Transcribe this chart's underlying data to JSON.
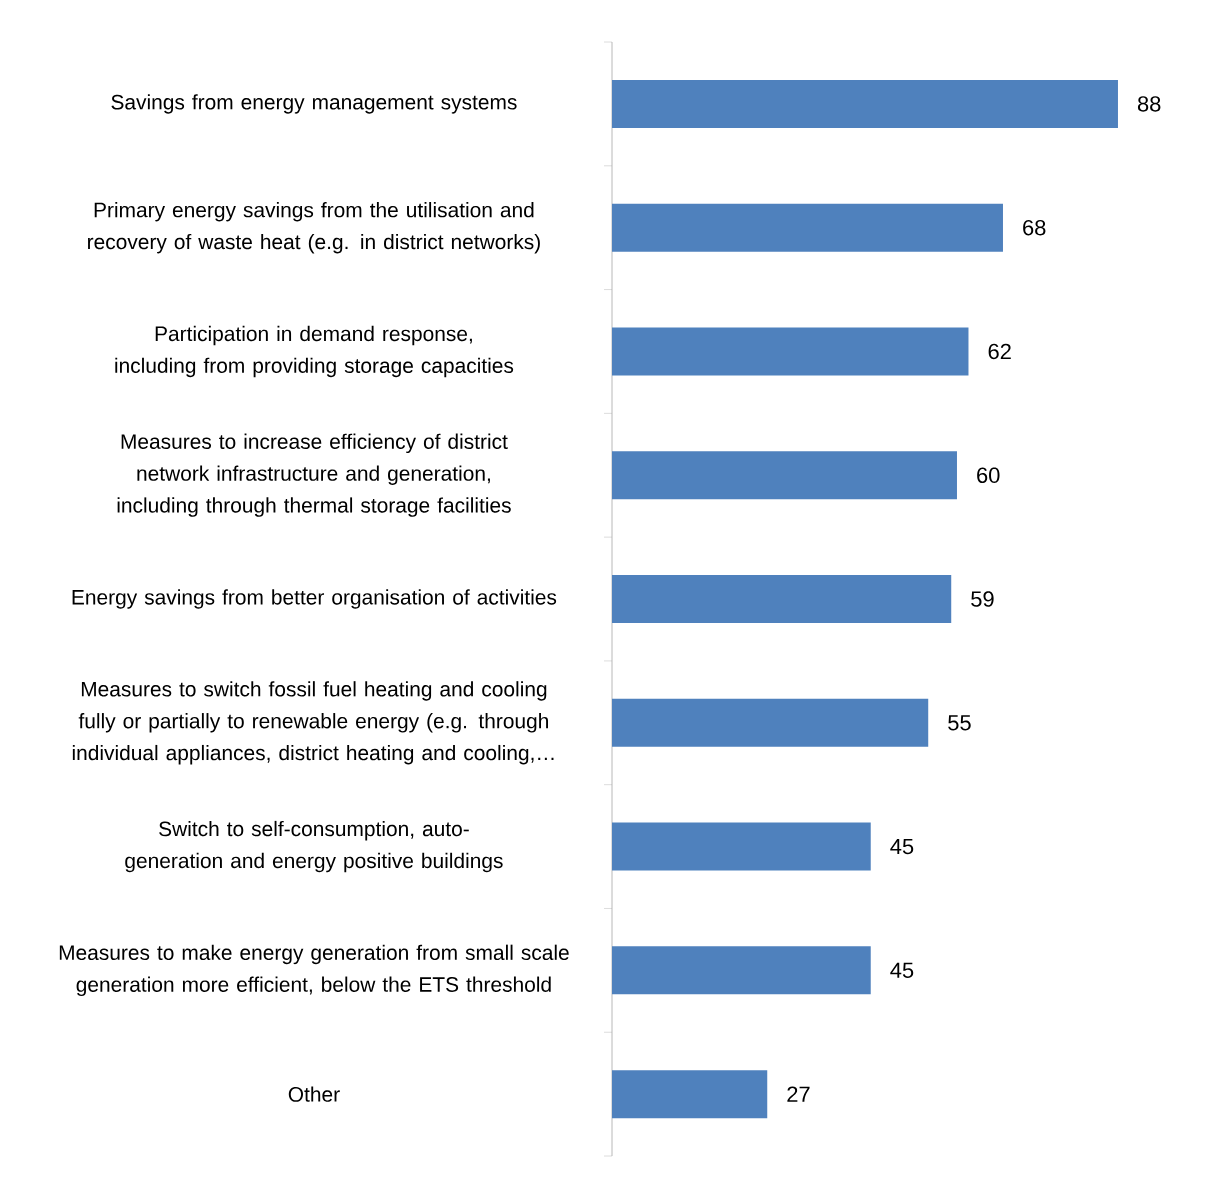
{
  "chart_data": {
    "type": "bar",
    "orientation": "horizontal",
    "data_labels": true,
    "color": "#4f81bd",
    "categories": [
      "Savings from energy management systems",
      "Primary energy savings from the utilisation and recovery of waste heat (e.g. in district networks)",
      "Participation in demand response, including from providing storage capacities",
      "Measures to increase efficiency of district network infrastructure and generation, including through thermal storage facilities",
      "Energy savings from better organisation of activities",
      "Measures to switch fossil fuel heating and cooling fully or partially to renewable energy (e.g. through individual appliances, district heating and cooling,…",
      "Switch to self-consumption, auto-generation and energy positive buildings",
      "Measures to make energy generation from small scale generation more efficient, below the ETS threshold",
      "Other"
    ],
    "values": [
      88,
      68,
      62,
      60,
      59,
      55,
      45,
      45,
      27
    ]
  }
}
